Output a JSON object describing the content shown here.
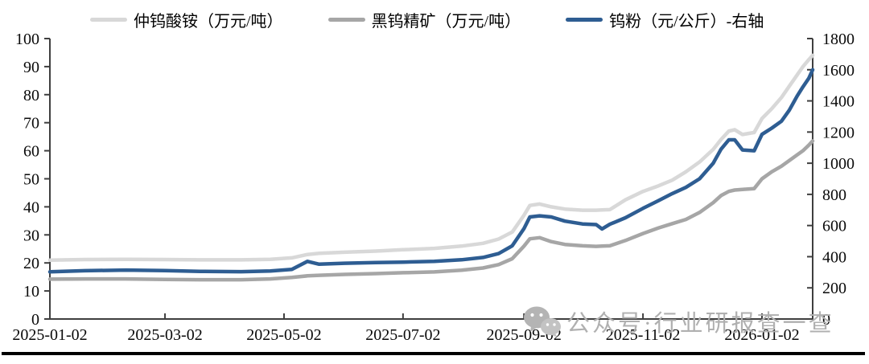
{
  "legend": [
    {
      "label": "仲钨酸铵（万元/吨）",
      "color": "#d8d8d8"
    },
    {
      "label": "黑钨精矿（万元/吨）",
      "color": "#a6a6a6"
    },
    {
      "label": "钨粉（元/公斤）-右轴",
      "color": "#2e5d92"
    }
  ],
  "watermark": {
    "text": "公众号·行业研报查一查"
  },
  "chart_data": {
    "type": "line",
    "title": "",
    "grid": false,
    "legend_position": "top",
    "x": [
      "2025-01-02",
      "2025-01-20",
      "2025-02-10",
      "2025-03-02",
      "2025-03-20",
      "2025-04-10",
      "2025-04-25",
      "2025-05-06",
      "2025-05-14",
      "2025-05-20",
      "2025-06-02",
      "2025-06-18",
      "2025-07-02",
      "2025-07-18",
      "2025-08-01",
      "2025-08-12",
      "2025-08-20",
      "2025-08-27",
      "2025-09-02",
      "2025-09-05",
      "2025-09-10",
      "2025-09-16",
      "2025-09-23",
      "2025-10-02",
      "2025-10-09",
      "2025-10-12",
      "2025-10-16",
      "2025-10-24",
      "2025-11-02",
      "2025-11-10",
      "2025-11-17",
      "2025-11-24",
      "2025-12-01",
      "2025-12-08",
      "2025-12-12",
      "2025-12-16",
      "2025-12-19",
      "2025-12-23",
      "2025-12-29",
      "2026-01-02",
      "2026-01-07",
      "2026-01-12",
      "2026-01-16",
      "2026-01-20",
      "2026-01-23",
      "2026-01-26",
      "2026-01-28"
    ],
    "series": [
      {
        "name": "仲钨酸铵（万元/吨）",
        "axis": "left",
        "color": "#d8d8d8",
        "values": [
          21.0,
          21.2,
          21.3,
          21.2,
          21.1,
          21.1,
          21.3,
          21.8,
          23.0,
          23.4,
          23.8,
          24.2,
          24.7,
          25.2,
          26.0,
          27.0,
          28.5,
          31.0,
          37.0,
          40.5,
          41.0,
          40.0,
          39.2,
          38.8,
          38.8,
          38.9,
          39.0,
          42.5,
          45.5,
          47.5,
          49.5,
          52.5,
          56.0,
          60.5,
          64.0,
          67.0,
          67.5,
          65.8,
          66.5,
          71.5,
          75.0,
          79.0,
          83.0,
          87.0,
          90.0,
          92.5,
          94.0
        ]
      },
      {
        "name": "黑钨精矿（万元/吨）",
        "axis": "left",
        "color": "#a6a6a6",
        "values": [
          14.2,
          14.3,
          14.3,
          14.1,
          14.0,
          14.0,
          14.3,
          14.8,
          15.4,
          15.6,
          15.9,
          16.2,
          16.5,
          16.8,
          17.4,
          18.2,
          19.4,
          21.5,
          26.0,
          28.6,
          29.0,
          27.6,
          26.6,
          26.1,
          25.9,
          26.0,
          26.1,
          28.0,
          30.5,
          32.5,
          34.0,
          35.5,
          38.0,
          41.5,
          44.0,
          45.5,
          46.0,
          46.2,
          46.5,
          50.0,
          52.5,
          54.5,
          56.5,
          58.5,
          60.0,
          62.0,
          63.5
        ]
      },
      {
        "name": "钨粉（元/公斤）-右轴",
        "axis": "right",
        "color": "#2e5d92",
        "values": [
          303,
          310,
          314,
          311,
          306,
          304,
          308,
          318,
          370,
          352,
          358,
          362,
          365,
          370,
          380,
          395,
          420,
          470,
          580,
          655,
          662,
          655,
          628,
          610,
          606,
          578,
          608,
          650,
          710,
          760,
          805,
          845,
          900,
          1000,
          1090,
          1150,
          1150,
          1085,
          1080,
          1185,
          1225,
          1270,
          1340,
          1430,
          1490,
          1545,
          1600
        ]
      }
    ],
    "left_axis": {
      "min": 0,
      "max": 100,
      "ticks": [
        0,
        10,
        20,
        30,
        40,
        50,
        60,
        70,
        80,
        90,
        100
      ]
    },
    "right_axis": {
      "min": 0,
      "max": 1800,
      "ticks": [
        0,
        200,
        400,
        600,
        800,
        1000,
        1200,
        1400,
        1600,
        1800
      ]
    },
    "x_ticks": [
      "2025-01-02",
      "2025-03-02",
      "2025-05-02",
      "2025-07-02",
      "2025-09-02",
      "2025-11-02",
      "2026-01-02"
    ]
  }
}
